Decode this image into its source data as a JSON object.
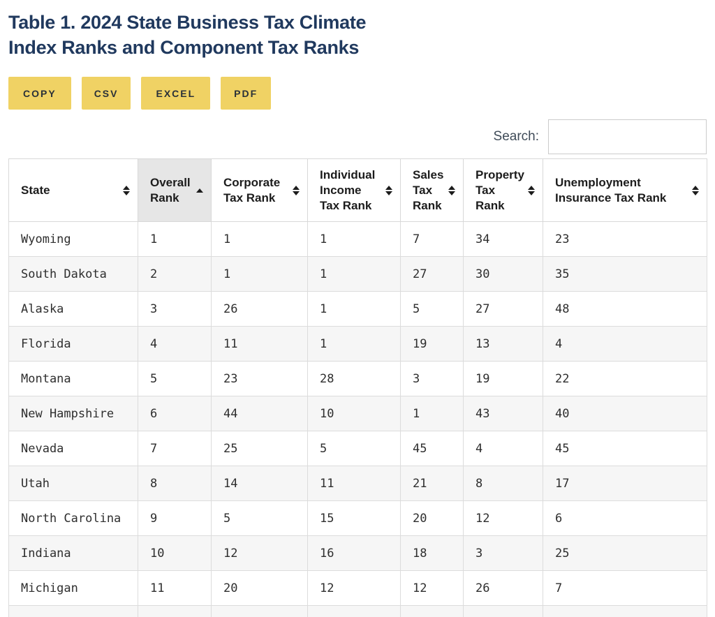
{
  "header": {
    "title_line1": "Table 1. 2024 State Business Tax Climate",
    "title_line2": "Index Ranks and Component Tax Ranks"
  },
  "export_buttons": [
    {
      "label": "COPY"
    },
    {
      "label": "CSV"
    },
    {
      "label": "EXCEL"
    },
    {
      "label": "PDF"
    }
  ],
  "search": {
    "label": "Search:",
    "value": "",
    "placeholder": ""
  },
  "table": {
    "columns": [
      {
        "label": "State",
        "sort_state": "none",
        "icon": "sort-both-icon"
      },
      {
        "label": "Overall Rank",
        "sort_state": "asc",
        "icon": "sort-asc-icon"
      },
      {
        "label": "Corporate Tax Rank",
        "sort_state": "none",
        "icon": "sort-both-icon"
      },
      {
        "label": "Individual Income Tax Rank",
        "sort_state": "none",
        "icon": "sort-both-icon"
      },
      {
        "label": "Sales Tax Rank",
        "sort_state": "none",
        "icon": "sort-both-icon"
      },
      {
        "label": "Property Tax Rank",
        "sort_state": "none",
        "icon": "sort-both-icon"
      },
      {
        "label": "Unemployment Insurance Tax Rank",
        "sort_state": "none",
        "icon": "sort-both-icon"
      }
    ],
    "rows": [
      {
        "state": "Wyoming",
        "overall": "1",
        "corporate": "1",
        "individual": "1",
        "sales": "7",
        "property": "34",
        "unemployment": "23"
      },
      {
        "state": "South Dakota",
        "overall": "2",
        "corporate": "1",
        "individual": "1",
        "sales": "27",
        "property": "30",
        "unemployment": "35"
      },
      {
        "state": "Alaska",
        "overall": "3",
        "corporate": "26",
        "individual": "1",
        "sales": "5",
        "property": "27",
        "unemployment": "48"
      },
      {
        "state": "Florida",
        "overall": "4",
        "corporate": "11",
        "individual": "1",
        "sales": "19",
        "property": "13",
        "unemployment": "4"
      },
      {
        "state": "Montana",
        "overall": "5",
        "corporate": "23",
        "individual": "28",
        "sales": "3",
        "property": "19",
        "unemployment": "22"
      },
      {
        "state": "New Hampshire",
        "overall": "6",
        "corporate": "44",
        "individual": "10",
        "sales": "1",
        "property": "43",
        "unemployment": "40"
      },
      {
        "state": "Nevada",
        "overall": "7",
        "corporate": "25",
        "individual": "5",
        "sales": "45",
        "property": "4",
        "unemployment": "45"
      },
      {
        "state": "Utah",
        "overall": "8",
        "corporate": "14",
        "individual": "11",
        "sales": "21",
        "property": "8",
        "unemployment": "17"
      },
      {
        "state": "North Carolina",
        "overall": "9",
        "corporate": "5",
        "individual": "15",
        "sales": "20",
        "property": "12",
        "unemployment": "6"
      },
      {
        "state": "Indiana",
        "overall": "10",
        "corporate": "12",
        "individual": "16",
        "sales": "18",
        "property": "3",
        "unemployment": "25"
      },
      {
        "state": "Michigan",
        "overall": "11",
        "corporate": "20",
        "individual": "12",
        "sales": "12",
        "property": "26",
        "unemployment": "7"
      }
    ],
    "partial_next_row_visible": true
  },
  "colors": {
    "title_navy": "#20395e",
    "button_yellow": "#f0d264",
    "button_text": "#2a3138",
    "row_stripe": "#f6f6f6",
    "sorted_header_bg": "#e6e6e6",
    "cell_border": "#dcdcdc",
    "header_text": "#1c1c1c",
    "body_text": "#2e2e2e",
    "search_label_text": "#3f4b58"
  }
}
